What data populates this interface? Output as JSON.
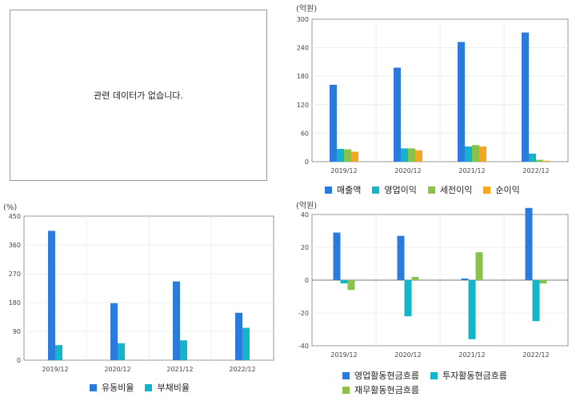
{
  "empty_panel": {
    "message": "관련 데이터가 없습니다."
  },
  "chart_data": [
    {
      "id": "income",
      "type": "bar",
      "unit_label": "(억원)",
      "categories": [
        "2019/12",
        "2020/12",
        "2021/12",
        "2022/12"
      ],
      "ylim": [
        0,
        300
      ],
      "yticks": [
        0,
        60,
        120,
        180,
        240,
        300
      ],
      "grid": true,
      "legend_position": "bottom",
      "series": [
        {
          "name": "매출액",
          "color": "#2b7bdc",
          "values": [
            162,
            198,
            252,
            272
          ]
        },
        {
          "name": "영업이익",
          "color": "#12b5c9",
          "values": [
            27,
            28,
            32,
            17
          ]
        },
        {
          "name": "세전이익",
          "color": "#8bc34a",
          "values": [
            26,
            28,
            35,
            4
          ]
        },
        {
          "name": "순이익",
          "color": "#f5a623",
          "values": [
            21,
            24,
            32,
            2
          ]
        }
      ]
    },
    {
      "id": "ratios",
      "type": "bar",
      "unit_label": "(%)",
      "categories": [
        "2019/12",
        "2020/12",
        "2021/12",
        "2022/12"
      ],
      "ylim": [
        0,
        450
      ],
      "yticks": [
        0,
        90,
        180,
        270,
        360,
        450
      ],
      "grid": true,
      "legend_position": "bottom",
      "series": [
        {
          "name": "유동비율",
          "color": "#2b7bdc",
          "values": [
            404,
            178,
            246,
            148
          ]
        },
        {
          "name": "부채비율",
          "color": "#12b5c9",
          "values": [
            47,
            53,
            62,
            101
          ]
        }
      ]
    },
    {
      "id": "cashflow",
      "type": "bar",
      "unit_label": "(억원)",
      "categories": [
        "2019/12",
        "2020/12",
        "2021/12",
        "2022/12"
      ],
      "ylim": [
        -40,
        40
      ],
      "yticks": [
        -40,
        -20,
        0,
        20,
        40
      ],
      "grid": true,
      "legend_position": "bottom",
      "series": [
        {
          "name": "영업활동현금흐름",
          "color": "#2b7bdc",
          "values": [
            29,
            27,
            1,
            44
          ]
        },
        {
          "name": "투자활동현금흐름",
          "color": "#12b5c9",
          "values": [
            -2,
            -22,
            -36,
            -25
          ]
        },
        {
          "name": "재무활동현금흐름",
          "color": "#8bc34a",
          "values": [
            -6,
            2,
            17,
            -2
          ]
        }
      ]
    }
  ]
}
